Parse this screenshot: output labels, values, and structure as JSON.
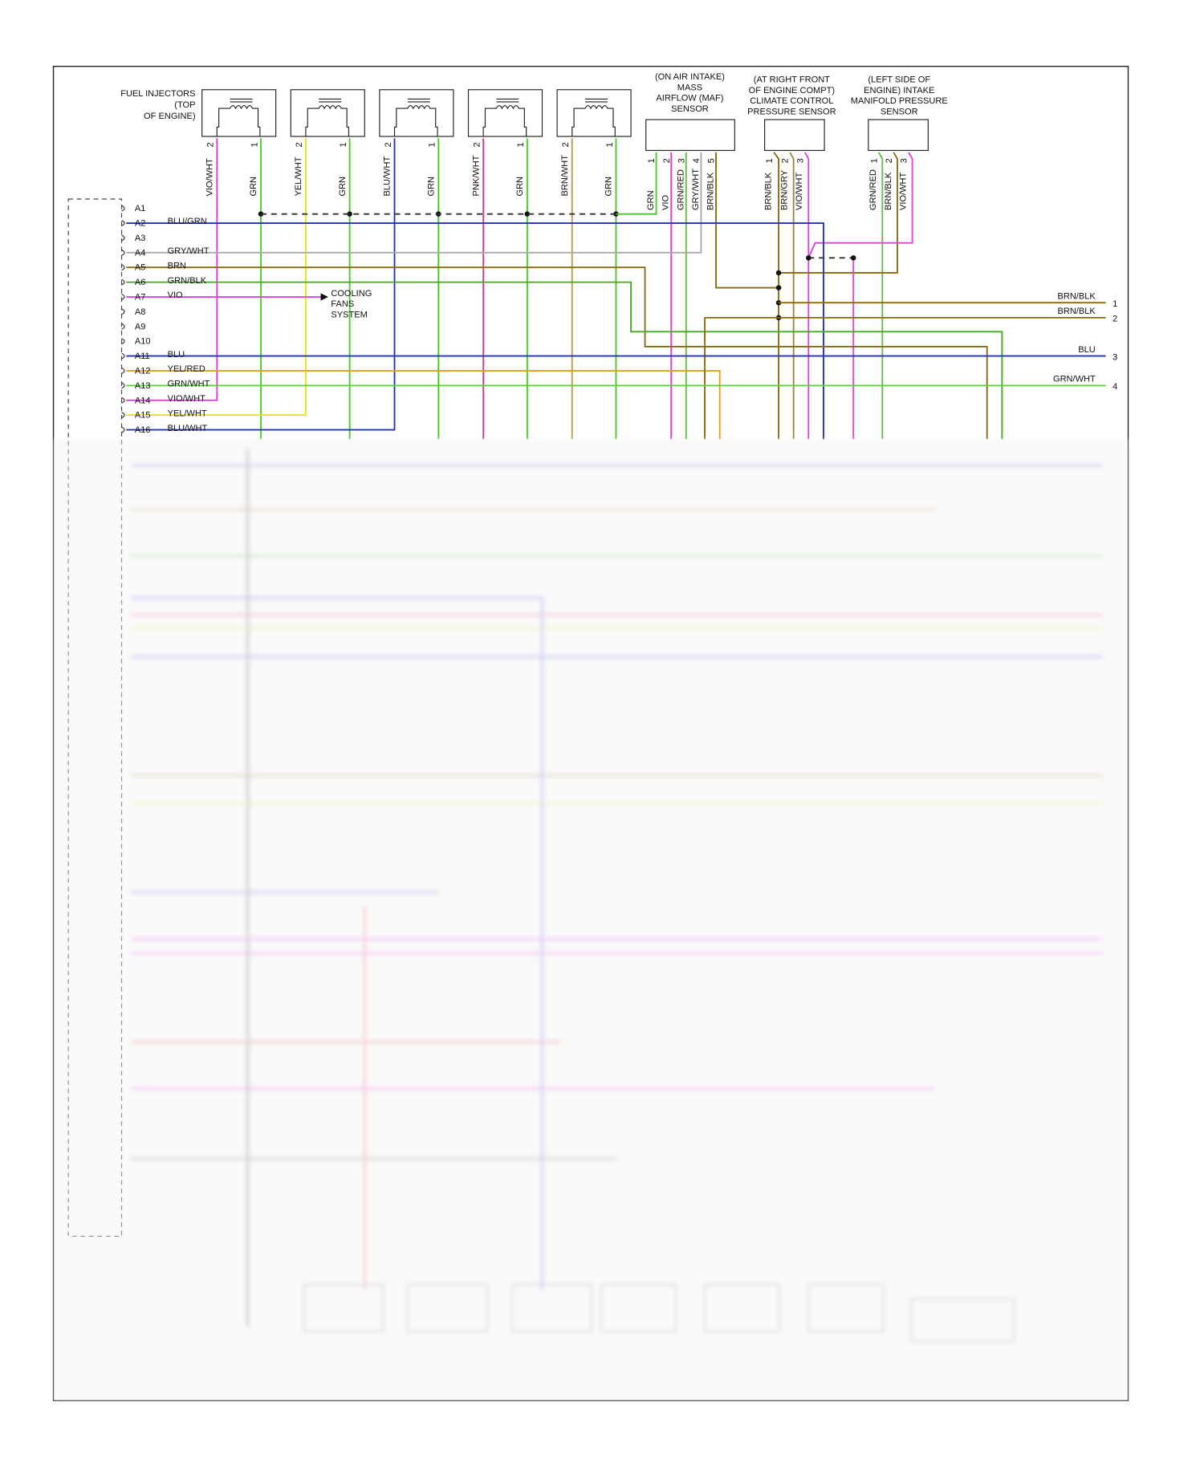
{
  "injectors": {
    "label_lines": [
      "FUEL INJECTORS",
      "(TOP",
      "OF ENGINE)"
    ],
    "units": [
      {
        "pins": [
          {
            "number": "2",
            "wire": "VIO/WHT",
            "stroke": "#e040e0"
          },
          {
            "number": "1",
            "wire": "GRN",
            "stroke": "#44cc22"
          }
        ]
      },
      {
        "pins": [
          {
            "number": "2",
            "wire": "YEL/WHT",
            "stroke": "#e8e020"
          },
          {
            "number": "1",
            "wire": "GRN",
            "stroke": "#44cc22"
          }
        ]
      },
      {
        "pins": [
          {
            "number": "2",
            "wire": "BLU/WHT",
            "stroke": "#2233bb"
          },
          {
            "number": "1",
            "wire": "GRN",
            "stroke": "#44cc22"
          }
        ]
      },
      {
        "pins": [
          {
            "number": "2",
            "wire": "PNK/WHT",
            "stroke": "#d04090"
          },
          {
            "number": "1",
            "wire": "GRN",
            "stroke": "#44cc22"
          }
        ]
      },
      {
        "pins": [
          {
            "number": "2",
            "wire": "BRN/WHT",
            "stroke": "#b89a50"
          },
          {
            "number": "1",
            "wire": "GRN",
            "stroke": "#44cc22"
          }
        ]
      }
    ]
  },
  "sensors": [
    {
      "label_lines": [
        "(ON AIR INTAKE)",
        "MASS",
        "AIRFLOW (MAF)",
        "SENSOR"
      ],
      "pins": [
        {
          "number": "1",
          "wire": "GRN",
          "stroke": "#44cc22"
        },
        {
          "number": "2",
          "wire": "VIO",
          "stroke": "#e040e0"
        },
        {
          "number": "3",
          "wire": "GRN/RED",
          "stroke": "#66bb44"
        },
        {
          "number": "4",
          "wire": "GRY/WHT",
          "stroke": "#aaaaaa"
        },
        {
          "number": "5",
          "wire": "BRN/BLK",
          "stroke": "#8a6a10"
        }
      ]
    },
    {
      "label_lines": [
        "(AT RIGHT FRONT",
        "OF ENGINE COMPT)",
        "CLIMATE CONTROL",
        "PRESSURE SENSOR"
      ],
      "pins": [
        {
          "number": "1",
          "wire": "BRN/BLK",
          "stroke": "#8a6a10"
        },
        {
          "number": "2",
          "wire": "BRN/GRY",
          "stroke": "#9a8a40"
        },
        {
          "number": "3",
          "wire": "VIO/WHT",
          "stroke": "#e040e0"
        }
      ]
    },
    {
      "label_lines": [
        "(LEFT SIDE OF",
        "ENGINE) INTAKE",
        "MANIFOLD PRESSURE",
        "SENSOR"
      ],
      "pins": [
        {
          "number": "1",
          "wire": "GRN/RED",
          "stroke": "#66bb44"
        },
        {
          "number": "2",
          "wire": "BRN/BLK",
          "stroke": "#8a6a10"
        },
        {
          "number": "3",
          "wire": "VIO/WHT",
          "stroke": "#e040e0"
        }
      ]
    }
  ],
  "connector": {
    "pins": [
      {
        "id": "A1"
      },
      {
        "id": "A2",
        "wire": "BLU/GRN",
        "stroke": "#2233bb"
      },
      {
        "id": "A3"
      },
      {
        "id": "A4",
        "wire": "GRY/WHT",
        "stroke": "#aaaaaa"
      },
      {
        "id": "A5",
        "wire": "BRN",
        "stroke": "#8a6a10"
      },
      {
        "id": "A6",
        "wire": "GRN/BLK",
        "stroke": "#44aa22"
      },
      {
        "id": "A7",
        "wire": "VIO",
        "stroke": "#e040e0"
      },
      {
        "id": "A8"
      },
      {
        "id": "A9"
      },
      {
        "id": "A10"
      },
      {
        "id": "A11",
        "wire": "BLU",
        "stroke": "#2233bb"
      },
      {
        "id": "A12",
        "wire": "YEL/RED",
        "stroke": "#e0a020"
      },
      {
        "id": "A13",
        "wire": "GRN/WHT",
        "stroke": "#66cc44"
      },
      {
        "id": "A14",
        "wire": "VIO/WHT",
        "stroke": "#e040e0"
      },
      {
        "id": "A15",
        "wire": "YEL/WHT",
        "stroke": "#e8e020"
      },
      {
        "id": "A16",
        "wire": "BLU/WHT",
        "stroke": "#2233bb"
      }
    ]
  },
  "cooling_fans": {
    "label_lines": [
      "COOLING",
      "FANS",
      "SYSTEM"
    ]
  },
  "outputs": [
    {
      "wire": "BRN/BLK",
      "number": "1",
      "stroke": "#8a6a10"
    },
    {
      "wire": "BRN/BLK",
      "number": "2",
      "stroke": "#8a6a10"
    },
    {
      "wire": "BLU",
      "number": "3",
      "stroke": "#2233bb"
    },
    {
      "wire": "GRN/WHT",
      "number": "4",
      "stroke": "#66cc44"
    }
  ]
}
